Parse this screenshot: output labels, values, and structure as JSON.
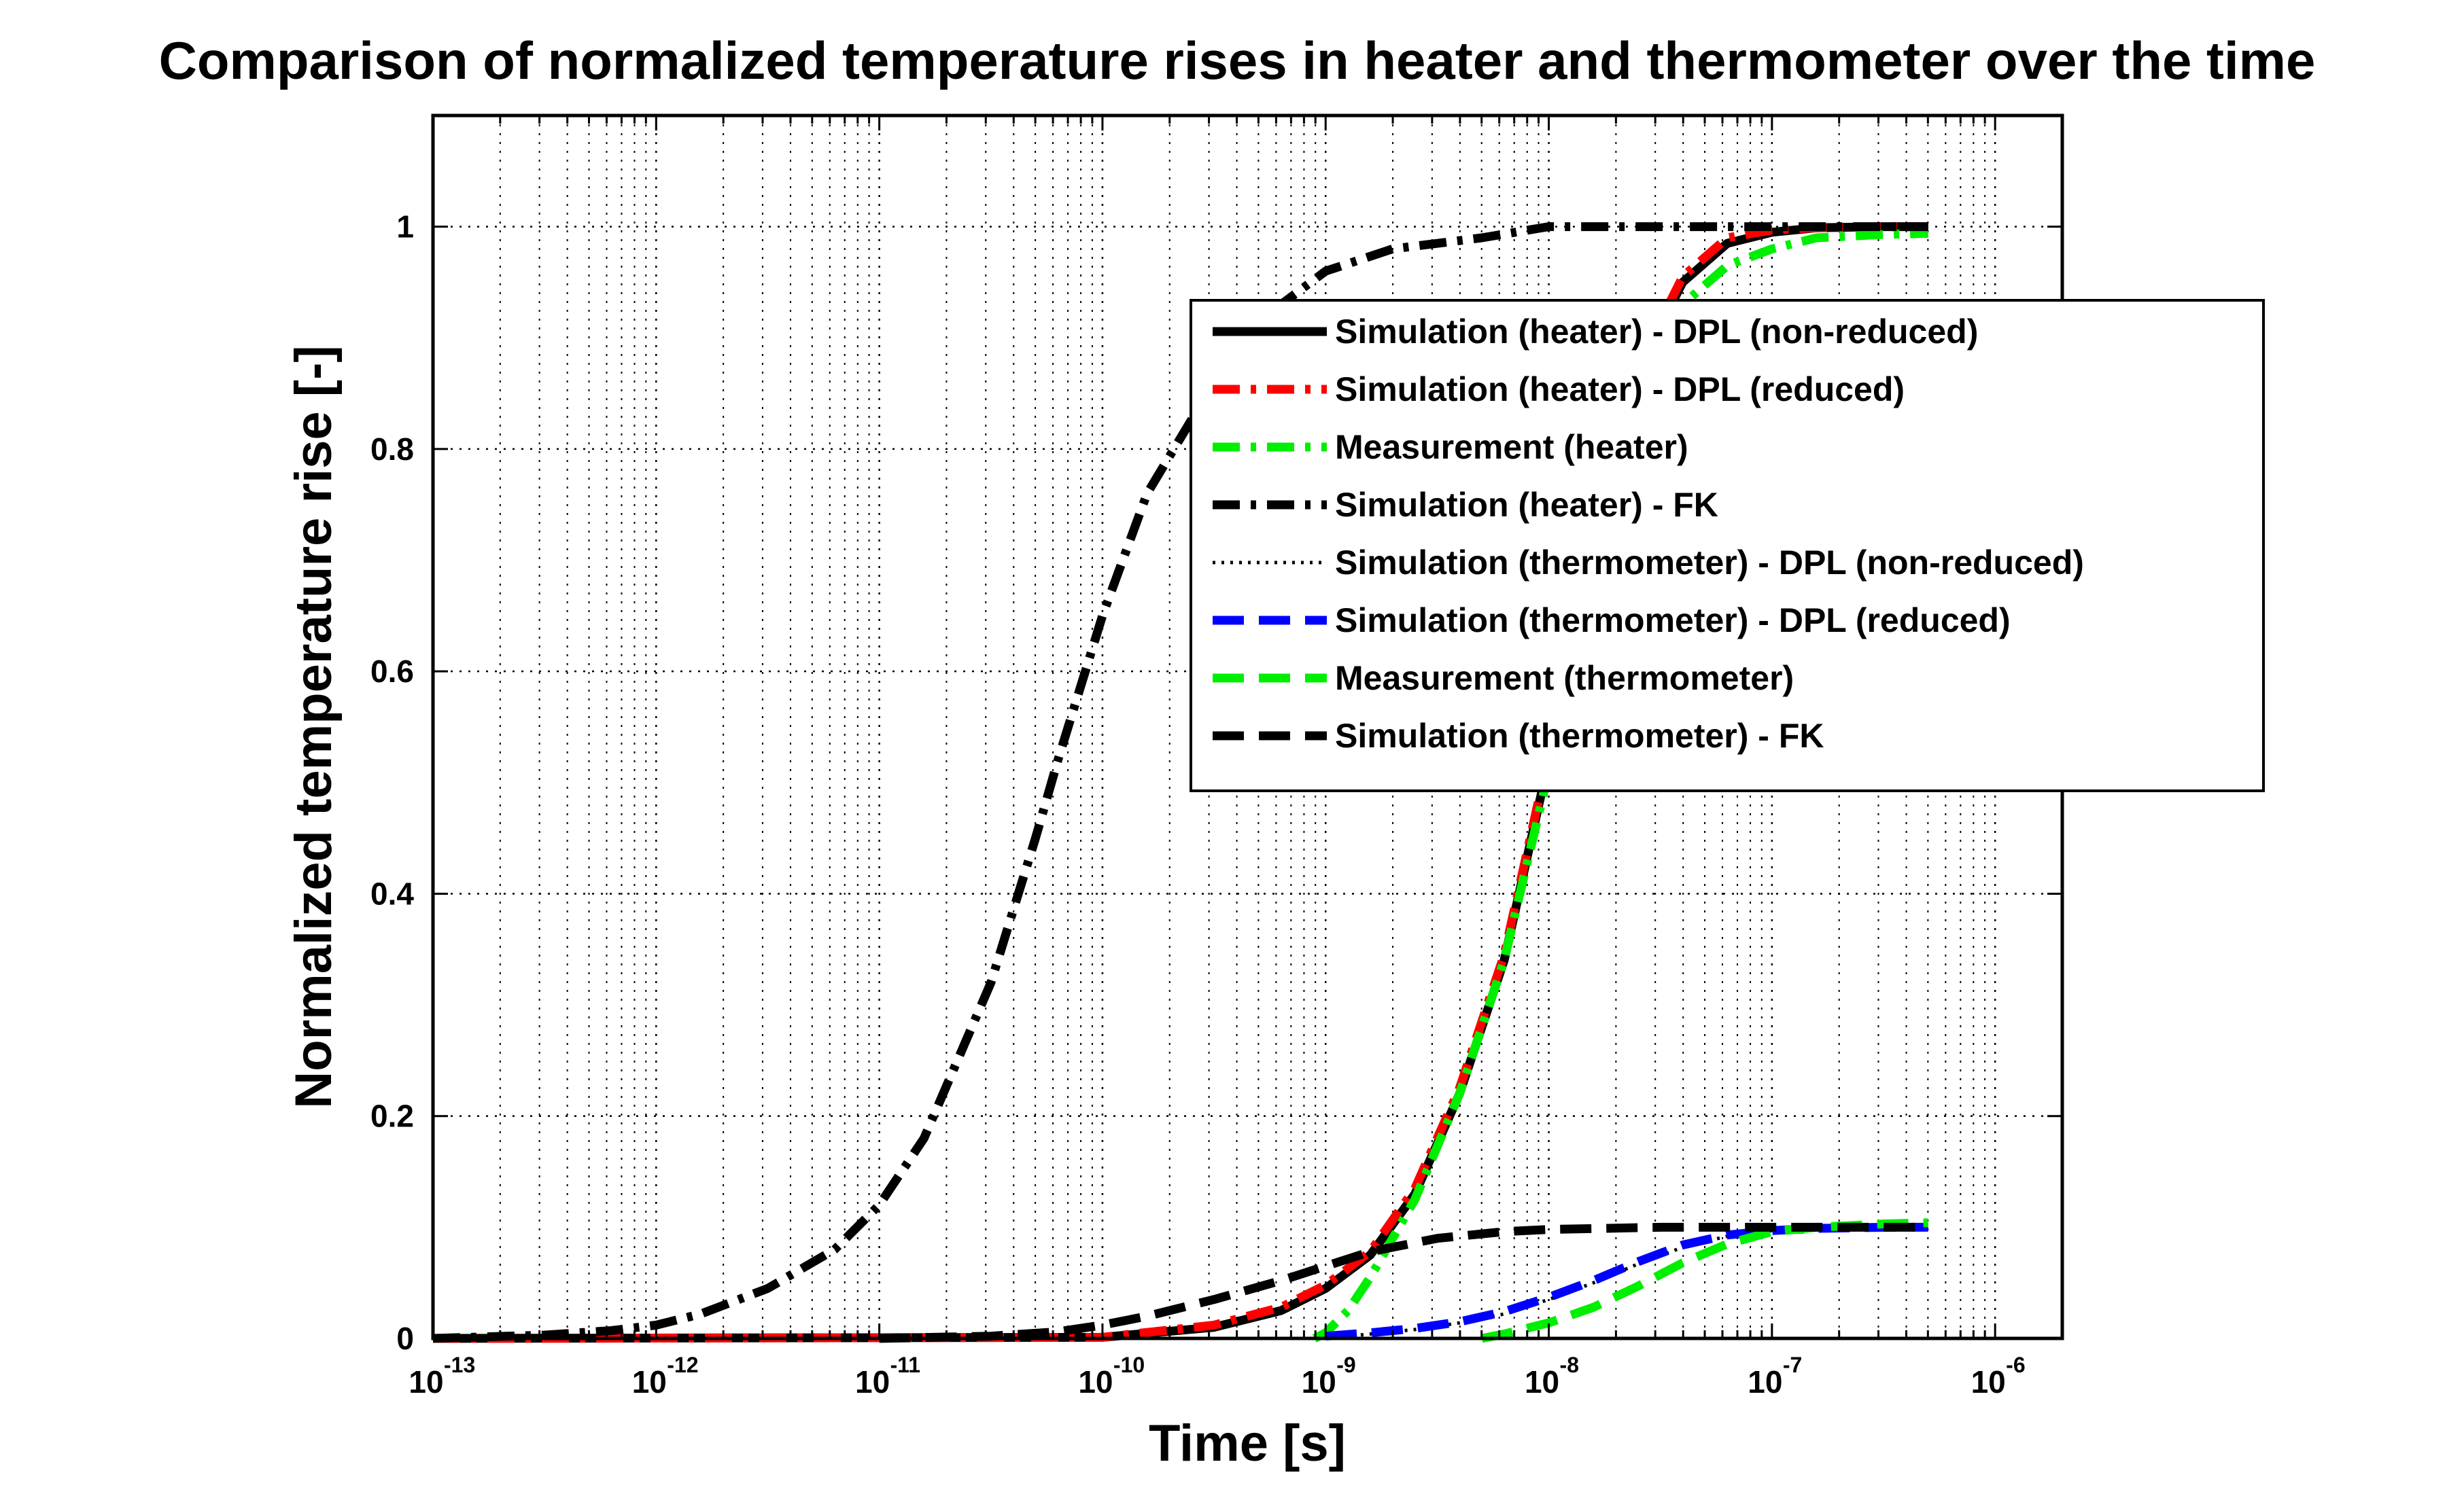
{
  "chart_data": {
    "type": "line",
    "title": "Comparison of normalized temperature rises in heater and thermometer over the time",
    "xlabel": "Time [s]",
    "ylabel": "Normalized temperature rise [-]",
    "xscale": "log",
    "xlim": [
      1e-13,
      2e-06
    ],
    "ylim": [
      0,
      1.1
    ],
    "grid": true,
    "x_ticks": [
      {
        "base": "10",
        "exp": "-13",
        "value": 1e-13
      },
      {
        "base": "10",
        "exp": "-12",
        "value": 1e-12
      },
      {
        "base": "10",
        "exp": "-11",
        "value": 1e-11
      },
      {
        "base": "10",
        "exp": "-10",
        "value": 1e-10
      },
      {
        "base": "10",
        "exp": "-9",
        "value": 1e-09
      },
      {
        "base": "10",
        "exp": "-8",
        "value": 1e-08
      },
      {
        "base": "10",
        "exp": "-7",
        "value": 1e-07
      },
      {
        "base": "10",
        "exp": "-6",
        "value": 1e-06
      }
    ],
    "y_ticks": [
      {
        "label": "0",
        "value": 0
      },
      {
        "label": "0.2",
        "value": 0.2
      },
      {
        "label": "0.4",
        "value": 0.4
      },
      {
        "label": "0.6",
        "value": 0.6
      },
      {
        "label": "0.8",
        "value": 0.8
      },
      {
        "label": "1",
        "value": 1
      }
    ],
    "legend_position": "upper-right",
    "series": [
      {
        "name": "Simulation (heater) - DPL (non-reduced)",
        "color": "#000000",
        "style": "solid",
        "width": 13,
        "log10_x": [
          -13,
          -10,
          -9.5,
          -9.2,
          -9,
          -8.8,
          -8.6,
          -8.4,
          -8.2,
          -8,
          -7.9,
          -7.8,
          -7.6,
          -7.4,
          -7.2,
          -7,
          -6.8,
          -6.5,
          -6.3
        ],
        "y": [
          0,
          0.001,
          0.01,
          0.025,
          0.045,
          0.075,
          0.13,
          0.22,
          0.34,
          0.52,
          0.62,
          0.72,
          0.87,
          0.95,
          0.985,
          0.995,
          0.999,
          1,
          1
        ]
      },
      {
        "name": "Simulation (heater) - DPL (reduced)",
        "color": "#ff0000",
        "style": "dashdot",
        "width": 13,
        "log10_x": [
          -13,
          -10,
          -9.5,
          -9.2,
          -9,
          -8.8,
          -8.6,
          -8.4,
          -8.2,
          -8,
          -7.9,
          -7.8,
          -7.6,
          -7.4,
          -7.2,
          -7,
          -6.8,
          -6.5,
          -6.3
        ],
        "y": [
          0,
          0.001,
          0.012,
          0.028,
          0.048,
          0.078,
          0.135,
          0.225,
          0.345,
          0.525,
          0.625,
          0.725,
          0.875,
          0.955,
          0.99,
          0.997,
          0.999,
          1,
          1
        ]
      },
      {
        "name": "Measurement (heater)",
        "color": "#00ee00",
        "style": "dashdot",
        "width": 13,
        "log10_x": [
          -9.05,
          -9,
          -8.9,
          -8.8,
          -8.6,
          -8.4,
          -8.2,
          -8,
          -7.9,
          -7.8,
          -7.6,
          -7.4,
          -7.2,
          -7,
          -6.8,
          -6.5,
          -6.3
        ],
        "y": [
          0,
          0.005,
          0.025,
          0.055,
          0.125,
          0.22,
          0.34,
          0.51,
          0.61,
          0.71,
          0.86,
          0.93,
          0.965,
          0.98,
          0.99,
          0.993,
          0.994
        ]
      },
      {
        "name": "Simulation (heater) - FK",
        "color": "#000000",
        "style": "dashdot",
        "width": 13,
        "log10_x": [
          -13,
          -12.5,
          -12.2,
          -12,
          -11.8,
          -11.5,
          -11.2,
          -11,
          -10.8,
          -10.5,
          -10.3,
          -10.2,
          -10,
          -9.8,
          -9.5,
          -9.2,
          -9,
          -8.7,
          -8.3,
          -8,
          -7.5,
          -7,
          -6.3
        ],
        "y": [
          0,
          0.003,
          0.007,
          0.012,
          0.022,
          0.045,
          0.08,
          0.12,
          0.18,
          0.32,
          0.45,
          0.52,
          0.65,
          0.76,
          0.86,
          0.93,
          0.96,
          0.98,
          0.99,
          1,
          1,
          1,
          1
        ]
      },
      {
        "name": "Simulation (thermometer) - DPL (non-reduced)",
        "color": "#000000",
        "style": "dotted",
        "width": 5,
        "log10_x": [
          -9,
          -8.8,
          -8.6,
          -8.4,
          -8.2,
          -8,
          -7.8,
          -7.6,
          -7.4,
          -7.2,
          -7,
          -6.8,
          -6.5,
          -6.3
        ],
        "y": [
          0,
          0.004,
          0.008,
          0.014,
          0.022,
          0.035,
          0.05,
          0.067,
          0.082,
          0.092,
          0.097,
          0.099,
          0.1,
          0.1
        ]
      },
      {
        "name": "Simulation (thermometer) - DPL (reduced)",
        "color": "#0000ff",
        "style": "dashed",
        "width": 13,
        "log10_x": [
          -9,
          -8.8,
          -8.6,
          -8.4,
          -8.2,
          -8,
          -7.8,
          -7.6,
          -7.4,
          -7.2,
          -7,
          -6.8,
          -6.5,
          -6.3
        ],
        "y": [
          0.002,
          0.005,
          0.009,
          0.015,
          0.024,
          0.037,
          0.052,
          0.069,
          0.084,
          0.093,
          0.097,
          0.099,
          0.1,
          0.1
        ]
      },
      {
        "name": "Measurement (thermometer)",
        "color": "#00ee00",
        "style": "dashed",
        "width": 13,
        "log10_x": [
          -8.3,
          -8.2,
          -8,
          -7.8,
          -7.6,
          -7.4,
          -7.2,
          -7,
          -6.8,
          -6.5,
          -6.3
        ],
        "y": [
          0,
          0.004,
          0.014,
          0.028,
          0.047,
          0.068,
          0.085,
          0.096,
          0.1,
          0.103,
          0.104
        ]
      },
      {
        "name": "Simulation (thermometer) - FK",
        "color": "#000000",
        "style": "dashed",
        "width": 13,
        "log10_x": [
          -11,
          -10.5,
          -10.2,
          -10,
          -9.8,
          -9.5,
          -9.2,
          -9,
          -8.8,
          -8.5,
          -8.2,
          -8,
          -7.5,
          -7,
          -6.5,
          -6.3
        ],
        "y": [
          0,
          0.002,
          0.006,
          0.012,
          0.02,
          0.035,
          0.052,
          0.065,
          0.078,
          0.09,
          0.096,
          0.098,
          0.1,
          0.1,
          0.1,
          0.1
        ]
      }
    ]
  }
}
